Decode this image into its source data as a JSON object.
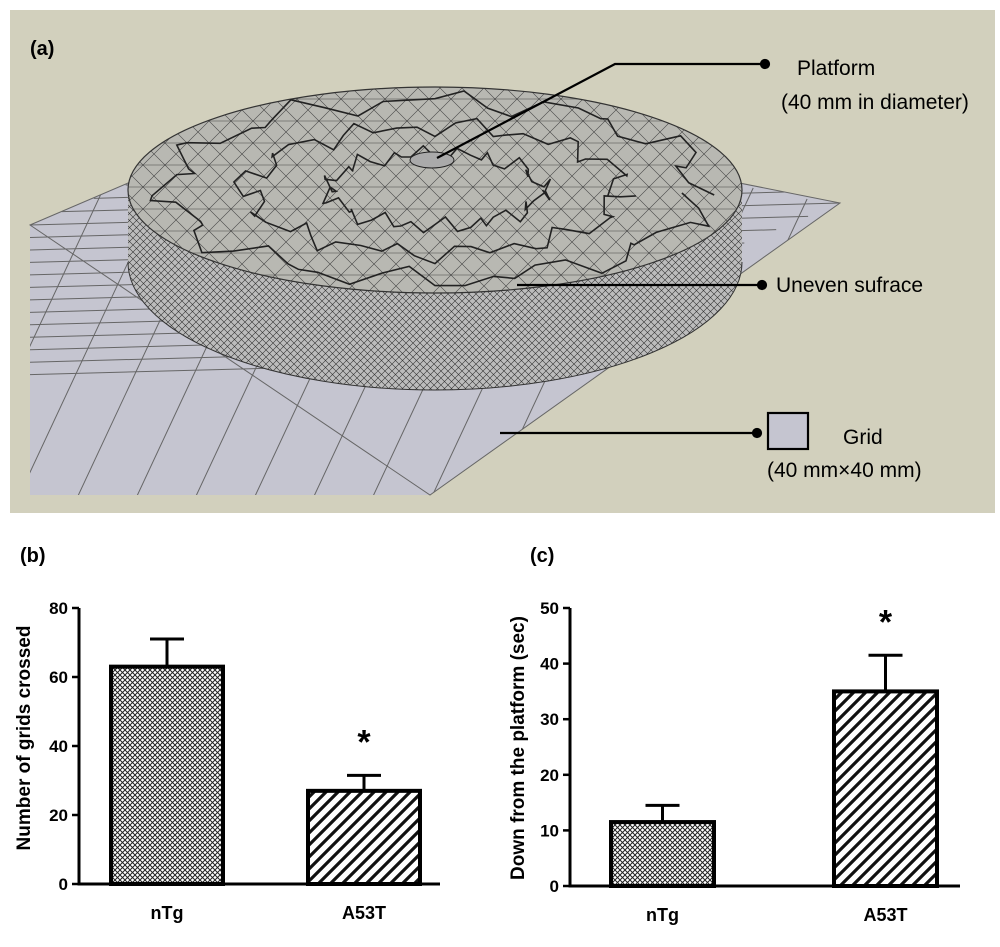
{
  "panel_a": {
    "label": "(a)",
    "platform_label": "Platform",
    "platform_size": "(40 mm in diameter)",
    "surface_label": "Uneven sufrace",
    "grid_label": "Grid",
    "grid_size": "(40 mm×40 mm)",
    "colors": {
      "background": "#d2d0bd",
      "floor": "#c5c5d0",
      "wire": "#333333"
    }
  },
  "chart_data": [
    {
      "panel": "(b)",
      "type": "bar",
      "categories": [
        "nTg",
        "A53T"
      ],
      "values": [
        63,
        27
      ],
      "error": [
        8,
        4.5
      ],
      "significance": [
        "",
        "*"
      ],
      "title": "",
      "xlabel": "",
      "ylabel": "Number of grids crossed",
      "ylim": [
        0,
        80
      ],
      "yticks": [
        "0",
        "20",
        "40",
        "60",
        "80"
      ],
      "patterns": [
        "crosshatch",
        "diagonal"
      ],
      "grid": false,
      "legend": "none"
    },
    {
      "panel": "(c)",
      "type": "bar",
      "categories": [
        "nTg",
        "A53T"
      ],
      "values": [
        11.5,
        35
      ],
      "error": [
        3,
        6.5
      ],
      "significance": [
        "",
        "*"
      ],
      "title": "",
      "xlabel": "",
      "ylabel": "Down from the platform (sec)",
      "ylim": [
        0,
        50
      ],
      "yticks": [
        "0",
        "10",
        "20",
        "30",
        "40",
        "50"
      ],
      "patterns": [
        "crosshatch",
        "diagonal"
      ],
      "grid": false,
      "legend": "none"
    }
  ]
}
